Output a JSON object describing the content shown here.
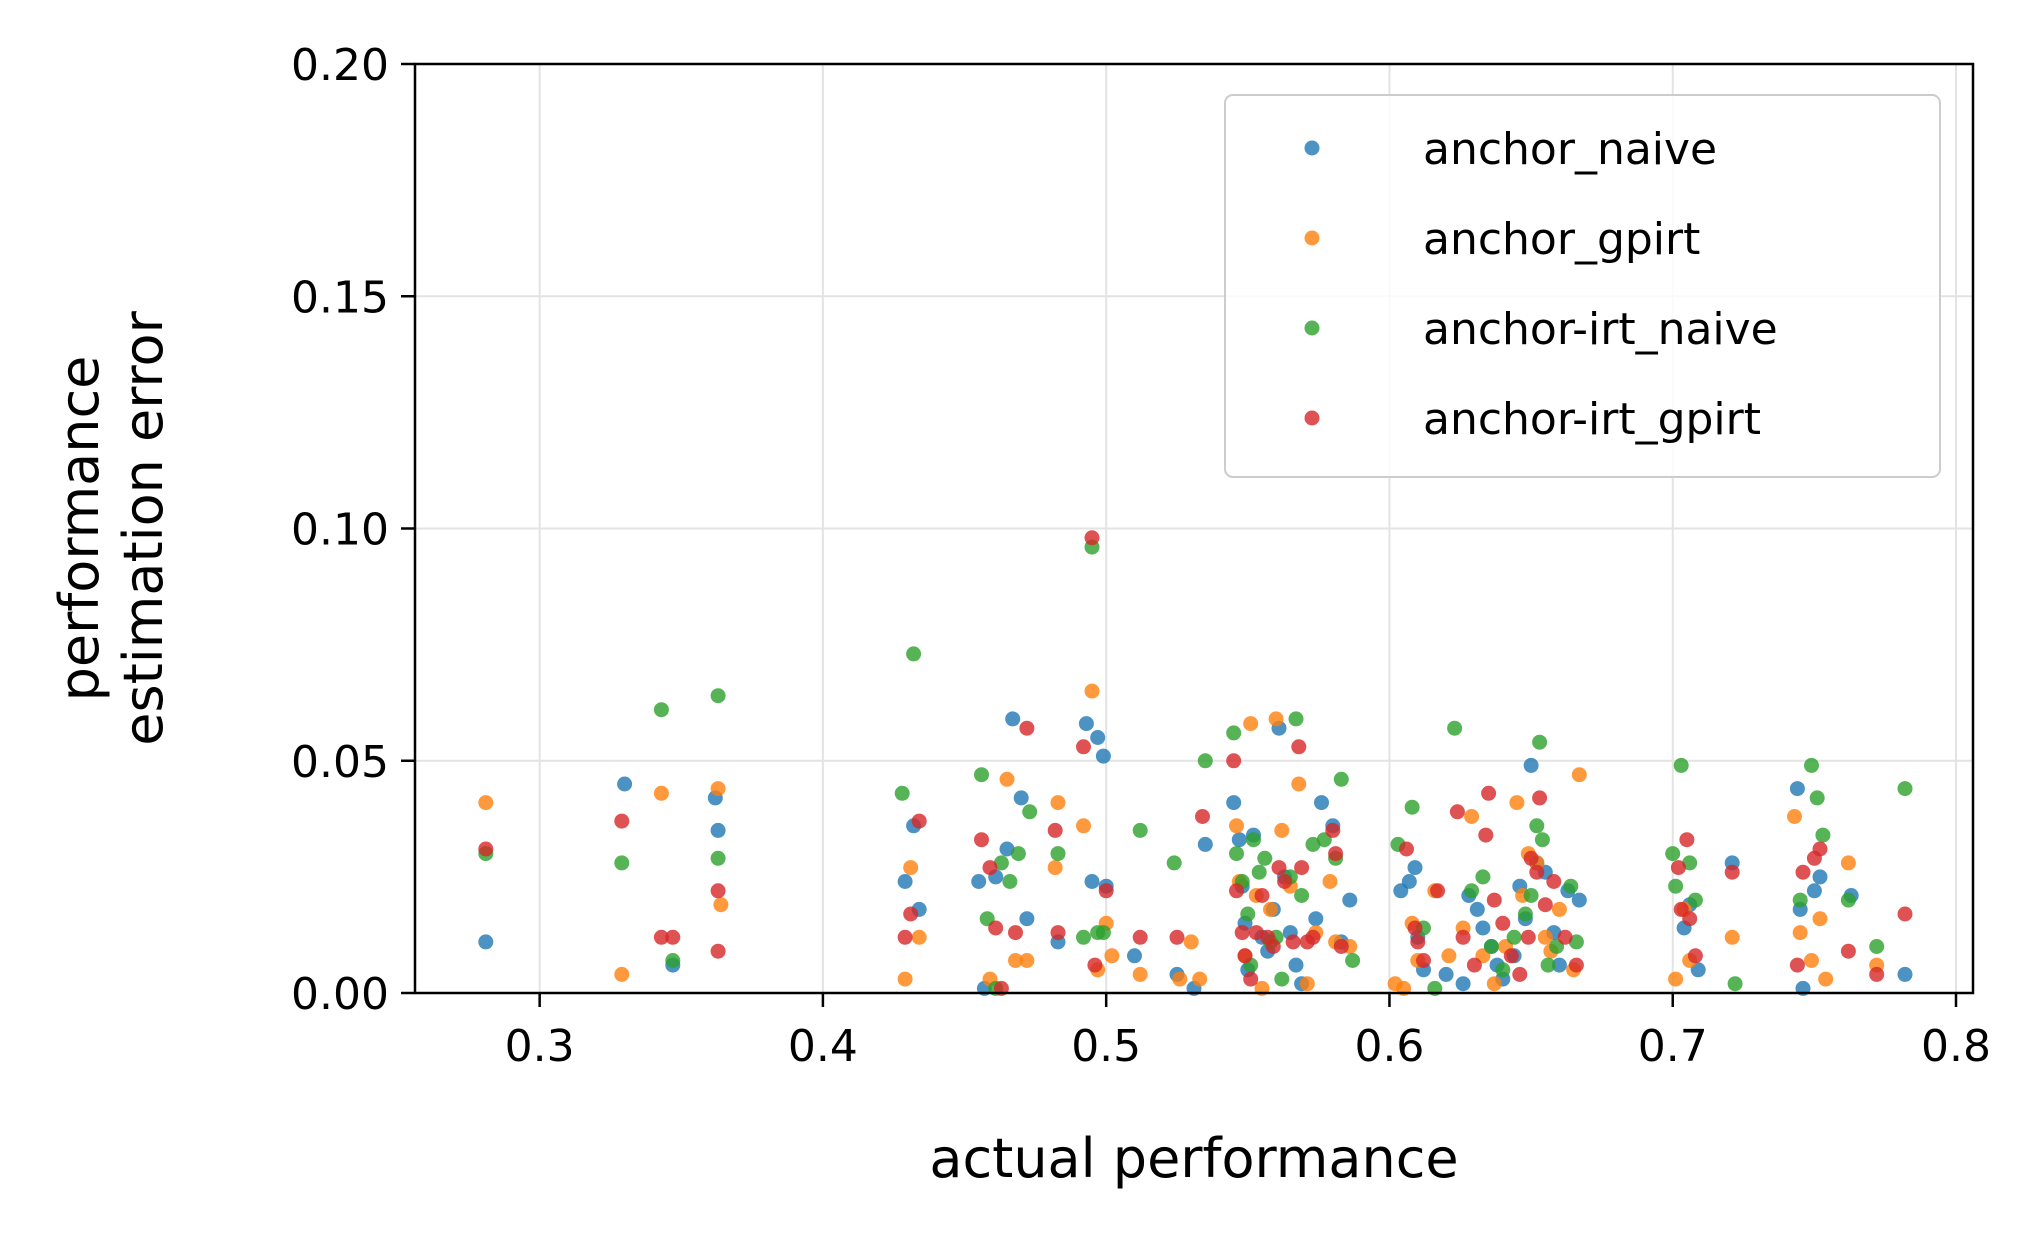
{
  "chart_data": {
    "type": "scatter",
    "xlabel": "actual performance",
    "ylabel_lines": [
      "performance",
      "estimation error"
    ],
    "xlim": [
      0.256,
      0.806
    ],
    "ylim": [
      0.0,
      0.2
    ],
    "xticks": [
      0.3,
      0.4,
      0.5,
      0.6,
      0.7,
      0.8
    ],
    "xtick_labels": [
      "0.3",
      "0.4",
      "0.5",
      "0.6",
      "0.7",
      "0.8"
    ],
    "yticks": [
      0.0,
      0.05,
      0.1,
      0.15,
      0.2
    ],
    "ytick_labels": [
      "0.00",
      "0.05",
      "0.10",
      "0.15",
      "0.20"
    ],
    "grid": true,
    "legend_position": "top-right",
    "series": [
      {
        "name": "anchor_naive",
        "color": "#1f77b4",
        "points": [
          [
            0.281,
            0.011
          ],
          [
            0.33,
            0.045
          ],
          [
            0.347,
            0.006
          ],
          [
            0.362,
            0.042
          ],
          [
            0.363,
            0.035
          ],
          [
            0.429,
            0.024
          ],
          [
            0.432,
            0.036
          ],
          [
            0.434,
            0.018
          ],
          [
            0.455,
            0.024
          ],
          [
            0.457,
            0.001
          ],
          [
            0.461,
            0.025
          ],
          [
            0.465,
            0.031
          ],
          [
            0.467,
            0.059
          ],
          [
            0.47,
            0.042
          ],
          [
            0.472,
            0.016
          ],
          [
            0.483,
            0.011
          ],
          [
            0.493,
            0.058
          ],
          [
            0.495,
            0.024
          ],
          [
            0.497,
            0.055
          ],
          [
            0.499,
            0.051
          ],
          [
            0.5,
            0.023
          ],
          [
            0.51,
            0.008
          ],
          [
            0.525,
            0.004
          ],
          [
            0.531,
            0.001
          ],
          [
            0.535,
            0.032
          ],
          [
            0.545,
            0.041
          ],
          [
            0.547,
            0.033
          ],
          [
            0.548,
            0.023
          ],
          [
            0.549,
            0.015
          ],
          [
            0.55,
            0.005
          ],
          [
            0.552,
            0.034
          ],
          [
            0.555,
            0.012
          ],
          [
            0.557,
            0.009
          ],
          [
            0.559,
            0.018
          ],
          [
            0.561,
            0.057
          ],
          [
            0.563,
            0.025
          ],
          [
            0.565,
            0.013
          ],
          [
            0.567,
            0.006
          ],
          [
            0.569,
            0.002
          ],
          [
            0.574,
            0.016
          ],
          [
            0.576,
            0.041
          ],
          [
            0.58,
            0.036
          ],
          [
            0.583,
            0.011
          ],
          [
            0.586,
            0.02
          ],
          [
            0.604,
            0.022
          ],
          [
            0.607,
            0.024
          ],
          [
            0.609,
            0.027
          ],
          [
            0.61,
            0.012
          ],
          [
            0.612,
            0.005
          ],
          [
            0.62,
            0.004
          ],
          [
            0.626,
            0.002
          ],
          [
            0.628,
            0.021
          ],
          [
            0.631,
            0.018
          ],
          [
            0.633,
            0.014
          ],
          [
            0.636,
            0.01
          ],
          [
            0.638,
            0.006
          ],
          [
            0.64,
            0.003
          ],
          [
            0.644,
            0.008
          ],
          [
            0.646,
            0.023
          ],
          [
            0.648,
            0.016
          ],
          [
            0.65,
            0.049
          ],
          [
            0.652,
            0.028
          ],
          [
            0.655,
            0.026
          ],
          [
            0.658,
            0.013
          ],
          [
            0.66,
            0.006
          ],
          [
            0.663,
            0.022
          ],
          [
            0.667,
            0.02
          ],
          [
            0.704,
            0.014
          ],
          [
            0.706,
            0.019
          ],
          [
            0.709,
            0.005
          ],
          [
            0.721,
            0.028
          ],
          [
            0.744,
            0.044
          ],
          [
            0.745,
            0.018
          ],
          [
            0.746,
            0.001
          ],
          [
            0.75,
            0.022
          ],
          [
            0.752,
            0.025
          ],
          [
            0.763,
            0.021
          ],
          [
            0.782,
            0.004
          ]
        ]
      },
      {
        "name": "anchor_gpirt",
        "color": "#ff7f0e",
        "points": [
          [
            0.281,
            0.041
          ],
          [
            0.329,
            0.004
          ],
          [
            0.343,
            0.043
          ],
          [
            0.363,
            0.044
          ],
          [
            0.364,
            0.019
          ],
          [
            0.429,
            0.003
          ],
          [
            0.431,
            0.027
          ],
          [
            0.434,
            0.012
          ],
          [
            0.459,
            0.003
          ],
          [
            0.465,
            0.046
          ],
          [
            0.468,
            0.007
          ],
          [
            0.472,
            0.007
          ],
          [
            0.482,
            0.027
          ],
          [
            0.483,
            0.041
          ],
          [
            0.492,
            0.036
          ],
          [
            0.495,
            0.065
          ],
          [
            0.497,
            0.005
          ],
          [
            0.5,
            0.015
          ],
          [
            0.502,
            0.008
          ],
          [
            0.512,
            0.004
          ],
          [
            0.526,
            0.003
          ],
          [
            0.53,
            0.011
          ],
          [
            0.533,
            0.003
          ],
          [
            0.546,
            0.036
          ],
          [
            0.547,
            0.024
          ],
          [
            0.549,
            0.008
          ],
          [
            0.551,
            0.058
          ],
          [
            0.553,
            0.021
          ],
          [
            0.555,
            0.001
          ],
          [
            0.558,
            0.018
          ],
          [
            0.56,
            0.059
          ],
          [
            0.562,
            0.035
          ],
          [
            0.565,
            0.023
          ],
          [
            0.568,
            0.045
          ],
          [
            0.571,
            0.002
          ],
          [
            0.574,
            0.013
          ],
          [
            0.579,
            0.024
          ],
          [
            0.581,
            0.011
          ],
          [
            0.586,
            0.01
          ],
          [
            0.602,
            0.002
          ],
          [
            0.605,
            0.001
          ],
          [
            0.608,
            0.015
          ],
          [
            0.61,
            0.007
          ],
          [
            0.616,
            0.022
          ],
          [
            0.621,
            0.008
          ],
          [
            0.626,
            0.014
          ],
          [
            0.629,
            0.038
          ],
          [
            0.633,
            0.008
          ],
          [
            0.637,
            0.002
          ],
          [
            0.641,
            0.01
          ],
          [
            0.645,
            0.041
          ],
          [
            0.647,
            0.021
          ],
          [
            0.649,
            0.03
          ],
          [
            0.652,
            0.028
          ],
          [
            0.655,
            0.012
          ],
          [
            0.657,
            0.009
          ],
          [
            0.66,
            0.018
          ],
          [
            0.665,
            0.005
          ],
          [
            0.667,
            0.047
          ],
          [
            0.701,
            0.003
          ],
          [
            0.704,
            0.018
          ],
          [
            0.706,
            0.007
          ],
          [
            0.721,
            0.012
          ],
          [
            0.743,
            0.038
          ],
          [
            0.745,
            0.013
          ],
          [
            0.749,
            0.007
          ],
          [
            0.752,
            0.016
          ],
          [
            0.754,
            0.003
          ],
          [
            0.762,
            0.028
          ],
          [
            0.772,
            0.006
          ]
        ]
      },
      {
        "name": "anchor-irt_naive",
        "color": "#2ca02c",
        "points": [
          [
            0.281,
            0.03
          ],
          [
            0.329,
            0.028
          ],
          [
            0.343,
            0.061
          ],
          [
            0.347,
            0.007
          ],
          [
            0.363,
            0.064
          ],
          [
            0.363,
            0.029
          ],
          [
            0.428,
            0.043
          ],
          [
            0.432,
            0.073
          ],
          [
            0.456,
            0.047
          ],
          [
            0.458,
            0.016
          ],
          [
            0.461,
            0.001
          ],
          [
            0.463,
            0.028
          ],
          [
            0.466,
            0.024
          ],
          [
            0.469,
            0.03
          ],
          [
            0.473,
            0.039
          ],
          [
            0.483,
            0.03
          ],
          [
            0.492,
            0.012
          ],
          [
            0.495,
            0.096
          ],
          [
            0.497,
            0.013
          ],
          [
            0.499,
            0.013
          ],
          [
            0.512,
            0.035
          ],
          [
            0.524,
            0.028
          ],
          [
            0.535,
            0.05
          ],
          [
            0.545,
            0.056
          ],
          [
            0.546,
            0.03
          ],
          [
            0.548,
            0.024
          ],
          [
            0.55,
            0.017
          ],
          [
            0.551,
            0.006
          ],
          [
            0.552,
            0.033
          ],
          [
            0.554,
            0.026
          ],
          [
            0.556,
            0.029
          ],
          [
            0.558,
            0.011
          ],
          [
            0.56,
            0.012
          ],
          [
            0.562,
            0.003
          ],
          [
            0.565,
            0.025
          ],
          [
            0.567,
            0.059
          ],
          [
            0.569,
            0.021
          ],
          [
            0.573,
            0.032
          ],
          [
            0.577,
            0.033
          ],
          [
            0.581,
            0.029
          ],
          [
            0.583,
            0.046
          ],
          [
            0.587,
            0.007
          ],
          [
            0.603,
            0.032
          ],
          [
            0.608,
            0.04
          ],
          [
            0.612,
            0.014
          ],
          [
            0.616,
            0.001
          ],
          [
            0.623,
            0.057
          ],
          [
            0.629,
            0.022
          ],
          [
            0.633,
            0.025
          ],
          [
            0.636,
            0.01
          ],
          [
            0.64,
            0.005
          ],
          [
            0.644,
            0.012
          ],
          [
            0.648,
            0.017
          ],
          [
            0.65,
            0.021
          ],
          [
            0.652,
            0.036
          ],
          [
            0.653,
            0.054
          ],
          [
            0.654,
            0.033
          ],
          [
            0.656,
            0.006
          ],
          [
            0.659,
            0.01
          ],
          [
            0.664,
            0.023
          ],
          [
            0.666,
            0.011
          ],
          [
            0.7,
            0.03
          ],
          [
            0.701,
            0.023
          ],
          [
            0.703,
            0.049
          ],
          [
            0.706,
            0.028
          ],
          [
            0.708,
            0.02
          ],
          [
            0.722,
            0.002
          ],
          [
            0.745,
            0.02
          ],
          [
            0.749,
            0.049
          ],
          [
            0.751,
            0.042
          ],
          [
            0.753,
            0.034
          ],
          [
            0.762,
            0.02
          ],
          [
            0.772,
            0.01
          ],
          [
            0.782,
            0.044
          ]
        ]
      },
      {
        "name": "anchor-irt_gpirt",
        "color": "#d62728",
        "points": [
          [
            0.281,
            0.031
          ],
          [
            0.329,
            0.037
          ],
          [
            0.343,
            0.012
          ],
          [
            0.347,
            0.012
          ],
          [
            0.363,
            0.022
          ],
          [
            0.363,
            0.009
          ],
          [
            0.429,
            0.012
          ],
          [
            0.431,
            0.017
          ],
          [
            0.434,
            0.037
          ],
          [
            0.456,
            0.033
          ],
          [
            0.459,
            0.027
          ],
          [
            0.461,
            0.014
          ],
          [
            0.463,
            0.001
          ],
          [
            0.468,
            0.013
          ],
          [
            0.472,
            0.057
          ],
          [
            0.482,
            0.035
          ],
          [
            0.483,
            0.013
          ],
          [
            0.492,
            0.053
          ],
          [
            0.495,
            0.098
          ],
          [
            0.496,
            0.006
          ],
          [
            0.5,
            0.022
          ],
          [
            0.512,
            0.012
          ],
          [
            0.525,
            0.012
          ],
          [
            0.534,
            0.038
          ],
          [
            0.545,
            0.05
          ],
          [
            0.546,
            0.022
          ],
          [
            0.548,
            0.013
          ],
          [
            0.549,
            0.008
          ],
          [
            0.551,
            0.003
          ],
          [
            0.553,
            0.013
          ],
          [
            0.555,
            0.021
          ],
          [
            0.557,
            0.012
          ],
          [
            0.559,
            0.01
          ],
          [
            0.561,
            0.027
          ],
          [
            0.563,
            0.024
          ],
          [
            0.566,
            0.011
          ],
          [
            0.568,
            0.053
          ],
          [
            0.569,
            0.027
          ],
          [
            0.571,
            0.011
          ],
          [
            0.573,
            0.012
          ],
          [
            0.58,
            0.035
          ],
          [
            0.581,
            0.03
          ],
          [
            0.583,
            0.01
          ],
          [
            0.606,
            0.031
          ],
          [
            0.609,
            0.014
          ],
          [
            0.61,
            0.011
          ],
          [
            0.612,
            0.007
          ],
          [
            0.617,
            0.022
          ],
          [
            0.624,
            0.039
          ],
          [
            0.626,
            0.012
          ],
          [
            0.63,
            0.006
          ],
          [
            0.634,
            0.034
          ],
          [
            0.635,
            0.043
          ],
          [
            0.637,
            0.02
          ],
          [
            0.64,
            0.015
          ],
          [
            0.643,
            0.008
          ],
          [
            0.646,
            0.004
          ],
          [
            0.649,
            0.012
          ],
          [
            0.65,
            0.029
          ],
          [
            0.652,
            0.026
          ],
          [
            0.653,
            0.042
          ],
          [
            0.655,
            0.019
          ],
          [
            0.658,
            0.024
          ],
          [
            0.662,
            0.012
          ],
          [
            0.666,
            0.006
          ],
          [
            0.702,
            0.027
          ],
          [
            0.703,
            0.018
          ],
          [
            0.705,
            0.033
          ],
          [
            0.706,
            0.016
          ],
          [
            0.708,
            0.008
          ],
          [
            0.721,
            0.026
          ],
          [
            0.744,
            0.006
          ],
          [
            0.746,
            0.026
          ],
          [
            0.75,
            0.029
          ],
          [
            0.752,
            0.031
          ],
          [
            0.762,
            0.009
          ],
          [
            0.772,
            0.004
          ],
          [
            0.782,
            0.017
          ]
        ]
      }
    ]
  }
}
